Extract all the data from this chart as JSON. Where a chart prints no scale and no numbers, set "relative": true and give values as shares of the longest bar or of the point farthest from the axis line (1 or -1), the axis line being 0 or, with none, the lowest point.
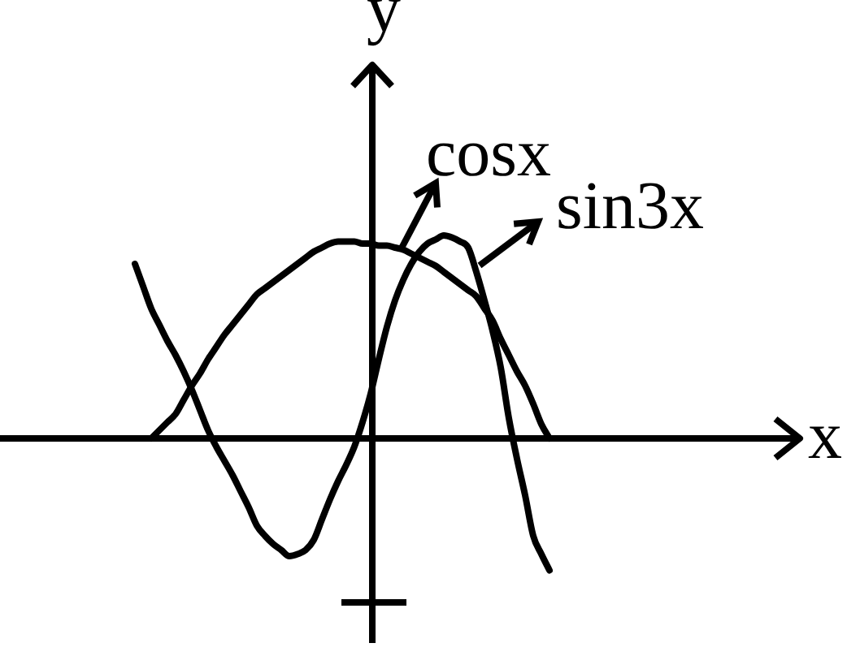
{
  "chart_data": {
    "type": "line",
    "relative": true,
    "xlabel": "x",
    "ylabel": "y",
    "legend": "top right",
    "categories": [
      null,
      null,
      null,
      null,
      null,
      null,
      null,
      null,
      null,
      null,
      null,
      null,
      null,
      null,
      null,
      null,
      null,
      null,
      null,
      null,
      null,
      null,
      null,
      null,
      null,
      null,
      null,
      null,
      null,
      null,
      null,
      null,
      null,
      null,
      null,
      null,
      null,
      null,
      null,
      null,
      null,
      null,
      null,
      null,
      null,
      null,
      null,
      null,
      null,
      null,
      null,
      null
    ],
    "series": [
      {
        "name": "cosx",
        "color": "#000000",
        "values": [
          null,
          null,
          0,
          0.04,
          0.08,
          0.12,
          0.19,
          0.26,
          0.32,
          0.39,
          0.45,
          0.51,
          0.56,
          0.61,
          0.66,
          0.71,
          0.74,
          0.77,
          0.8,
          0.83,
          0.86,
          0.89,
          0.92,
          0.94,
          0.96,
          0.97,
          0.97,
          0.97,
          0.96,
          0.96,
          0.95,
          0.95,
          0.94,
          0.93,
          0.91,
          0.89,
          0.87,
          0.85,
          0.82,
          0.79,
          0.76,
          0.73,
          0.7,
          0.64,
          0.58,
          0.49,
          0.41,
          0.33,
          0.26,
          0.17,
          0.07,
          0
        ]
      },
      {
        "name": "sin3x",
        "color": "#000000",
        "values": [
          0.86,
          0.75,
          0.64,
          0.56,
          0.48,
          0.41,
          0.33,
          0.24,
          0.14,
          0.04,
          -0.04,
          -0.11,
          -0.18,
          -0.26,
          -0.34,
          -0.43,
          -0.48,
          -0.52,
          -0.55,
          -0.58,
          -0.57,
          -0.55,
          -0.5,
          -0.4,
          -0.3,
          -0.21,
          -0.13,
          -0.04,
          0.08,
          0.22,
          0.39,
          0.55,
          0.68,
          0.78,
          0.86,
          0.92,
          0.96,
          0.98,
          1,
          0.99,
          0.97,
          0.94,
          0.82,
          0.68,
          0.53,
          0.35,
          0.1,
          -0.1,
          -0.28,
          -0.48,
          -0.57,
          -0.65
        ]
      }
    ]
  }
}
